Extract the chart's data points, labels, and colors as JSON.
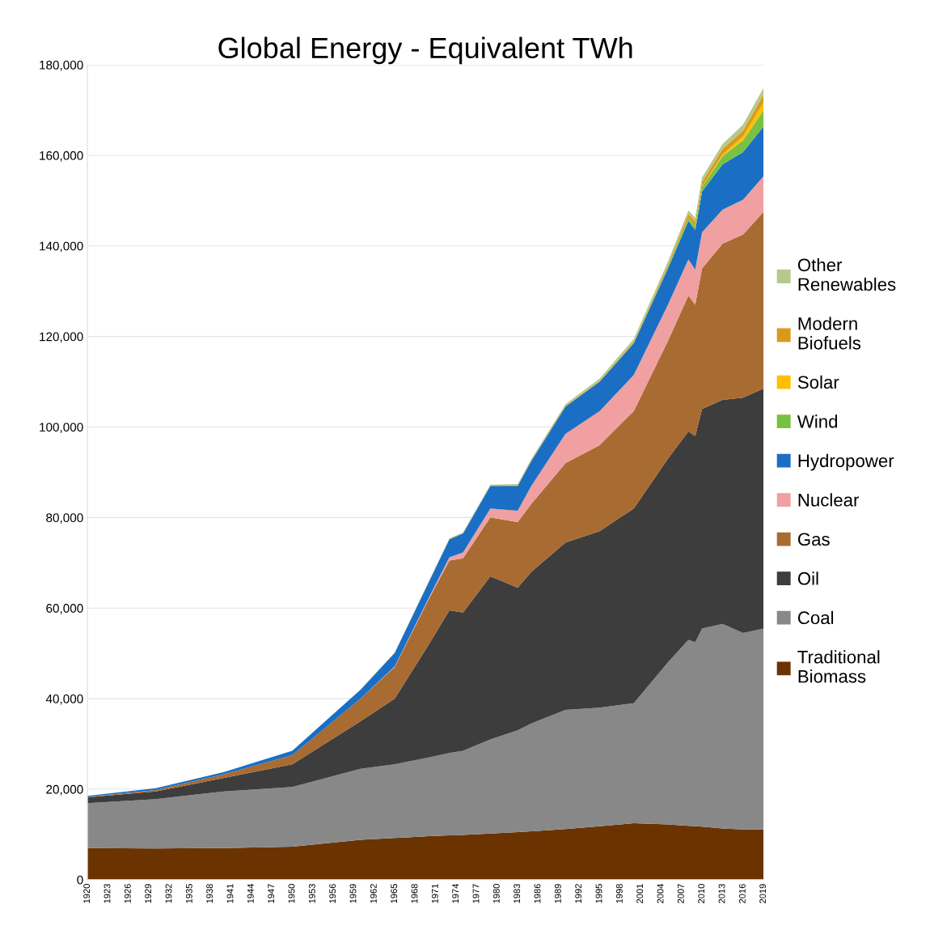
{
  "chart_data": {
    "type": "area",
    "stacked": true,
    "title": "Global Energy - Equivalent TWh",
    "x": [
      1920,
      1930,
      1940,
      1950,
      1960,
      1965,
      1970,
      1973,
      1975,
      1979,
      1983,
      1985,
      1990,
      1995,
      2000,
      2005,
      2008,
      2009,
      2010,
      2013,
      2016,
      2019
    ],
    "series": [
      {
        "name": "Traditional Biomass",
        "color": "#6b3300",
        "values": [
          7000,
          6900,
          7000,
          7300,
          8800,
          9200,
          9600,
          9800,
          9900,
          10200,
          10500,
          10700,
          11200,
          11800,
          12500,
          12200,
          11900,
          11800,
          11700,
          11300,
          11100,
          11100
        ]
      },
      {
        "name": "Coal",
        "color": "#888888",
        "values": [
          9900,
          10900,
          12500,
          13200,
          15700,
          16300,
          17400,
          18200,
          18600,
          20800,
          22500,
          23800,
          26300,
          26200,
          26500,
          35800,
          41100,
          40700,
          43800,
          45200,
          43400,
          44400
        ]
      },
      {
        "name": "Oil",
        "color": "#3d3d3d",
        "values": [
          1300,
          1700,
          3000,
          5000,
          10500,
          14500,
          25000,
          31500,
          30500,
          36000,
          31500,
          33500,
          37000,
          39000,
          43000,
          45000,
          46000,
          45500,
          48500,
          49500,
          52000,
          53000
        ]
      },
      {
        "name": "Gas",
        "color": "#a86b32",
        "values": [
          100,
          300,
          800,
          2000,
          5000,
          7000,
          10000,
          11000,
          12000,
          13000,
          14500,
          15000,
          17500,
          19000,
          21500,
          26000,
          30000,
          29000,
          31000,
          34500,
          36000,
          39000
        ]
      },
      {
        "name": "Nuclear",
        "color": "#f0a0a0",
        "values": [
          0,
          0,
          0,
          0,
          0,
          100,
          300,
          700,
          1300,
          2000,
          2500,
          4000,
          6500,
          7500,
          8000,
          8000,
          8000,
          7800,
          8000,
          7500,
          7700,
          7900
        ]
      },
      {
        "name": "Hydropower",
        "color": "#1a6fc4",
        "values": [
          200,
          400,
          500,
          1000,
          2000,
          3000,
          3500,
          4000,
          4200,
          5000,
          5500,
          5500,
          6000,
          6500,
          7000,
          8000,
          8500,
          8700,
          9000,
          10000,
          10500,
          11000
        ]
      },
      {
        "name": "Wind",
        "color": "#78c142",
        "values": [
          0,
          0,
          0,
          0,
          0,
          0,
          0,
          0,
          0,
          0,
          0,
          0,
          0,
          0,
          100,
          300,
          600,
          800,
          1000,
          1800,
          2600,
          3500
        ]
      },
      {
        "name": "Solar",
        "color": "#ffc000",
        "values": [
          0,
          0,
          0,
          0,
          0,
          0,
          0,
          0,
          0,
          0,
          0,
          0,
          0,
          0,
          0,
          0,
          30,
          50,
          100,
          400,
          900,
          1800
        ]
      },
      {
        "name": "Modern Biofuels",
        "color": "#d99a1c",
        "values": [
          0,
          0,
          0,
          0,
          0,
          0,
          0,
          0,
          0,
          0,
          100,
          100,
          150,
          200,
          250,
          500,
          900,
          1000,
          1100,
          1200,
          1300,
          1700
        ]
      },
      {
        "name": "Other Renewables",
        "color": "#b5c98a",
        "values": [
          0,
          0,
          0,
          0,
          0,
          100,
          150,
          200,
          200,
          250,
          300,
          350,
          400,
          500,
          600,
          700,
          800,
          850,
          900,
          1100,
          1300,
          1500
        ]
      }
    ],
    "xlim": [
      1920,
      2019
    ],
    "xticks": [
      1920,
      1923,
      1926,
      1929,
      1932,
      1935,
      1938,
      1941,
      1944,
      1947,
      1950,
      1953,
      1956,
      1959,
      1962,
      1965,
      1968,
      1971,
      1974,
      1977,
      1980,
      1983,
      1986,
      1989,
      1992,
      1995,
      1998,
      2001,
      2004,
      2007,
      2010,
      2013,
      2016,
      2019
    ],
    "ylim": [
      0,
      180000
    ],
    "yticks": [
      0,
      {
        "value": 20000,
        "label": "20,000"
      },
      {
        "value": 40000,
        "label": "40,000"
      },
      {
        "value": 60000,
        "label": "60,000"
      },
      {
        "value": 80000,
        "label": "80,000"
      },
      {
        "value": 100000,
        "label": "100,000"
      },
      {
        "value": 120000,
        "label": "120,000"
      },
      {
        "value": 140000,
        "label": "140,000"
      },
      {
        "value": 160000,
        "label": "160,000"
      },
      {
        "value": 180000,
        "label": "180,000"
      }
    ],
    "grid": "y",
    "legend": "right"
  }
}
